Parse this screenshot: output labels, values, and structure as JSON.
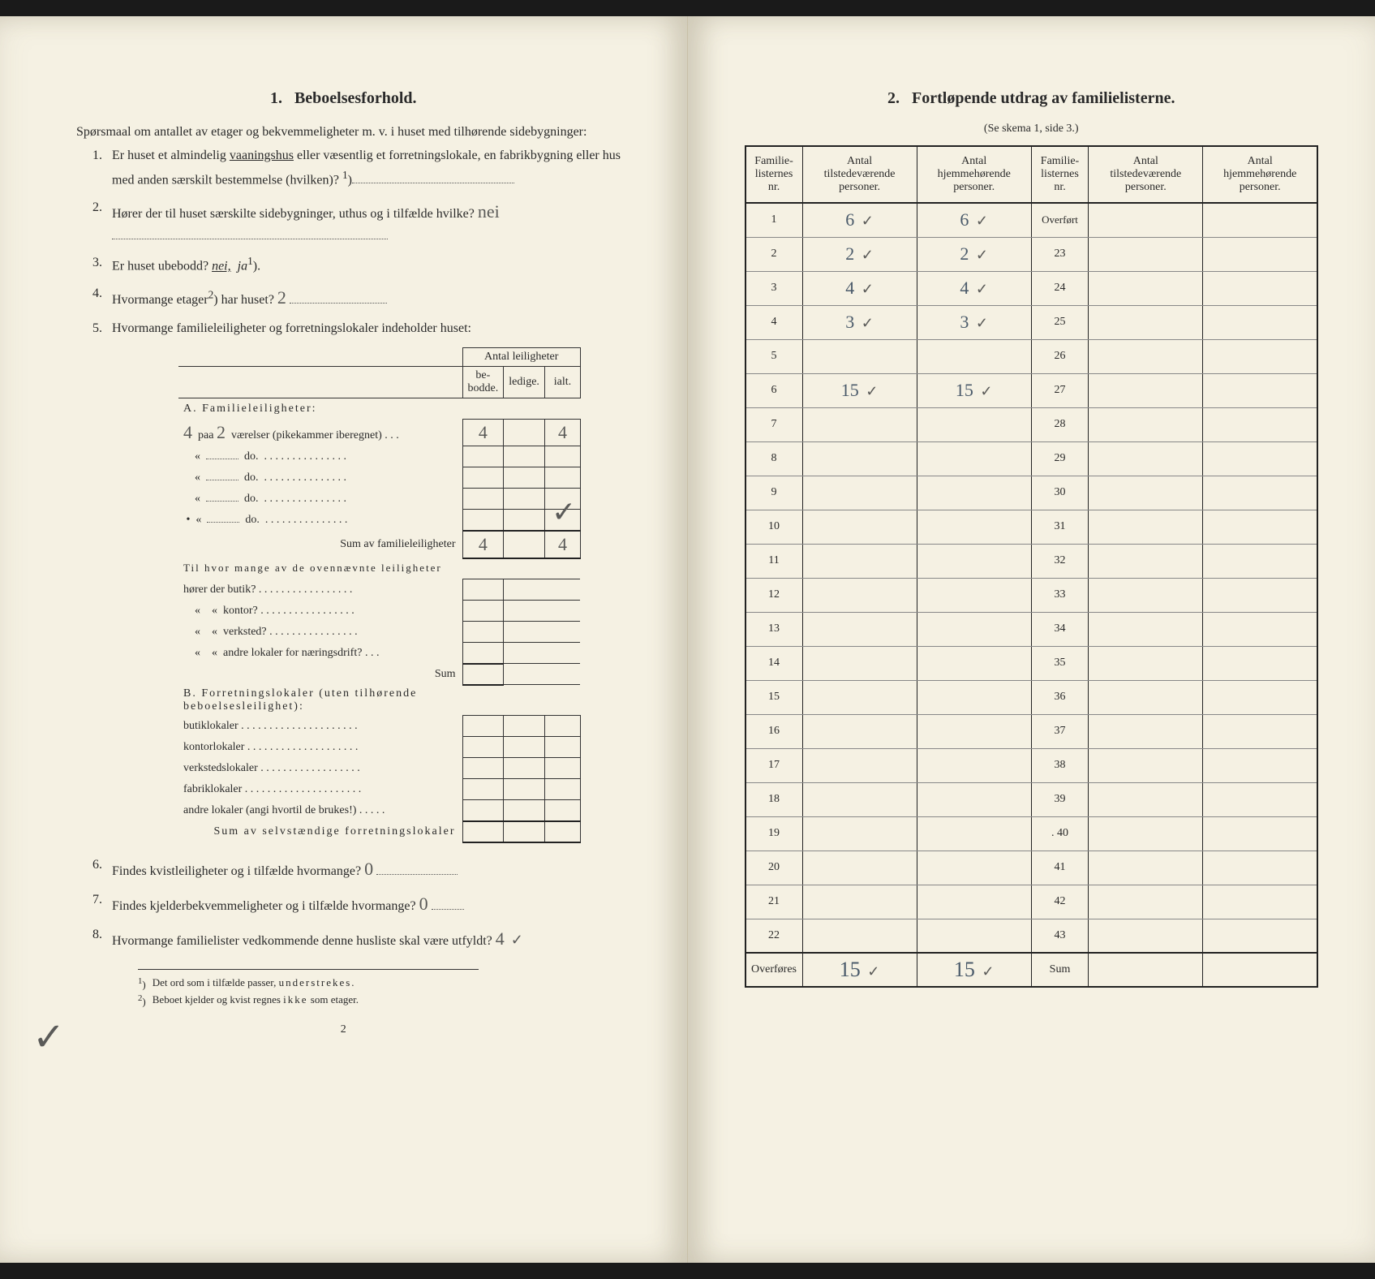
{
  "left": {
    "section_number": "1.",
    "section_title": "Beboelsesforhold.",
    "intro": "Spørsmaal om antallet av etager og bekvemmeligheter m. v. i huset med tilhørende sidebygninger:",
    "q1_num": "1.",
    "q1_text_a": "Er huset et almindelig ",
    "q1_text_b": "vaaningshus",
    "q1_text_c": " eller væsentlig et forretningslokale, en fabrikbygning eller hus med anden særskilt bestemmelse (hvilken)? ",
    "q1_sup": "1",
    "q1_text_d": ")",
    "q2_num": "2.",
    "q2_text": "Hører der til huset særskilte sidebygninger, uthus og i tilfælde hvilke?",
    "q2_answer": "nei",
    "q3_num": "3.",
    "q3_text_a": "Er huset ubebodd? ",
    "q3_nei": "nei,",
    "q3_ja": "ja",
    "q3_sup": "1",
    "q3_text_b": ").",
    "q4_num": "4.",
    "q4_text_a": "Hvormange etager",
    "q4_sup": "2",
    "q4_text_b": ") har huset?",
    "q4_answer": "2",
    "q5_num": "5.",
    "q5_text": "Hvormange familieleiligheter og forretningslokaler indeholder huset:",
    "inner_header_top": "Antal leiligheter",
    "inner_header_1": "be-\nbodde.",
    "inner_header_2": "ledige.",
    "inner_header_3": "ialt.",
    "sectA_title": "A. Familieleiligheter:",
    "sectA_prefix_hand": "4",
    "sectA_row1_a": "paa",
    "sectA_row1_hand": "2",
    "sectA_row1_b": "værelser (pikekammer iberegnet) . . .",
    "sectA_row1_v1": "4",
    "sectA_row1_v3": "4",
    "sectA_row_do": "do.",
    "sectA_sum": "Sum av familieleiligheter",
    "sectA_sum_v1": "4",
    "sectA_sum_v3": "4",
    "til_hvor": "Til hvor mange av de ovennævnte leiligheter",
    "til_1": "hører der butik? . . . . . . . . . . . . . . . . .",
    "til_2": "kontor? . . . . . . . . . . . . . . . . .",
    "til_3": "verksted? . . . . . . . . . . . . . . . .",
    "til_4": "andre lokaler for næringsdrift? . . .",
    "til_sum": "Sum",
    "sectB_title": "B. Forretningslokaler (uten tilhørende beboelsesleilighet):",
    "sectB_1": "butiklokaler . . . . . . . . . . . . . . . . . . . . .",
    "sectB_2": "kontorlokaler . . . . . . . . . . . . . . . . . . . .",
    "sectB_3": "verkstedslokaler . . . . . . . . . . . . . . . . . .",
    "sectB_4": "fabriklokaler . . . . . . . . . . . . . . . . . . . . .",
    "sectB_5": "andre lokaler (angi hvortil de brukes!) . . . . .",
    "sectB_sum": "Sum av selvstændige forretningslokaler",
    "q6_num": "6.",
    "q6_text": "Findes kvistleiligheter og i tilfælde hvormange?",
    "q6_answer": "0",
    "q7_num": "7.",
    "q7_text": "Findes kjelderbekvemmeligheter og i tilfælde hvormange?",
    "q7_answer": "0",
    "q8_num": "8.",
    "q8_text": "Hvormange familielister vedkommende denne husliste skal være utfyldt?",
    "q8_answer": "4",
    "fn1_sup": "1",
    "fn1": "Det ord som i tilfælde passer, understrekes.",
    "fn2_sup": "2",
    "fn2": "Beboet kjelder og kvist regnes ikke som etager.",
    "page_num": "2"
  },
  "right": {
    "section_number": "2.",
    "section_title": "Fortløpende utdrag av familielisterne.",
    "subtitle": "(Se skema 1, side 3.)",
    "col1": "Familie-\nlisternes\nnr.",
    "col2": "Antal\ntilstedeværende\npersoner.",
    "col3": "Antal\nhjemmehørende\npersoner.",
    "col4": "Familie-\nlisternes\nnr.",
    "col5": "Antal\ntilstedeværende\npersoner.",
    "col6": "Antal\nhjemmehørende\npersoner.",
    "rows_left_nr": [
      "1",
      "2",
      "3",
      "4",
      "5",
      "6",
      "7",
      "8",
      "9",
      "10",
      "11",
      "12",
      "13",
      "14",
      "15",
      "16",
      "17",
      "18",
      "19",
      "20",
      "21",
      "22"
    ],
    "rows_left_tilst": [
      "6",
      "2",
      "4",
      "3",
      "",
      "15",
      "",
      "",
      "",
      "",
      "",
      "",
      "",
      "",
      "",
      "",
      "",
      "",
      "",
      "",
      "",
      ""
    ],
    "rows_left_hjem": [
      "6",
      "2",
      "4",
      "3",
      "",
      "15",
      "",
      "",
      "",
      "",
      "",
      "",
      "",
      "",
      "",
      "",
      "",
      "",
      "",
      "",
      "",
      ""
    ],
    "rows_right_nr": [
      "Overført",
      "23",
      "24",
      "25",
      "26",
      "27",
      "28",
      "29",
      "30",
      "31",
      "32",
      "33",
      "34",
      "35",
      "36",
      "37",
      "38",
      "39",
      ". 40",
      "41",
      "42",
      "43"
    ],
    "overfores": "Overføres",
    "overfores_v1": "15",
    "overfores_v2": "15",
    "sum_label": "Sum"
  }
}
